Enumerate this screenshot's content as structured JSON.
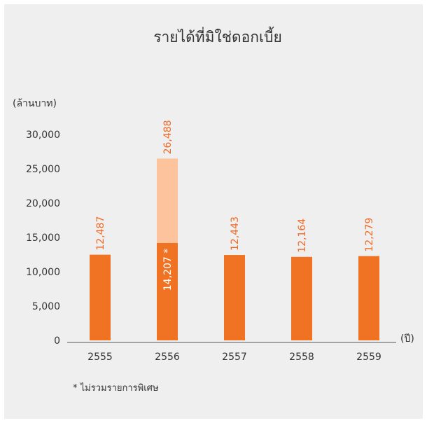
{
  "chart_data": {
    "type": "bar",
    "title": "รายได้ที่มิใช่ดอกเบี้ย",
    "ylabel": "(ล้านบาท)",
    "xlabel": "(ปี)",
    "ylim": [
      0,
      30000
    ],
    "yticks": [
      0,
      5000,
      10000,
      15000,
      20000,
      25000,
      30000
    ],
    "ytick_labels": [
      "0",
      "5,000",
      "10,000",
      "15,000",
      "20,000",
      "25,000",
      "30,000"
    ],
    "categories": [
      "2555",
      "2556",
      "2557",
      "2558",
      "2559"
    ],
    "series": [
      {
        "values": [
          12487,
          14207,
          12443,
          12164,
          12279
        ],
        "color": "#f07223"
      },
      {
        "values": [
          0,
          12281,
          0,
          0,
          0
        ],
        "color": "#fcc39c"
      }
    ],
    "data_labels": [
      "12,487",
      "26,488",
      "12,443",
      "12,164",
      "12,279"
    ],
    "inner_label": {
      "index": 1,
      "text": "14,207 *"
    },
    "footnote": "*  ไม่รวมรายการพิเศษ",
    "grid": false,
    "legend": "none"
  }
}
